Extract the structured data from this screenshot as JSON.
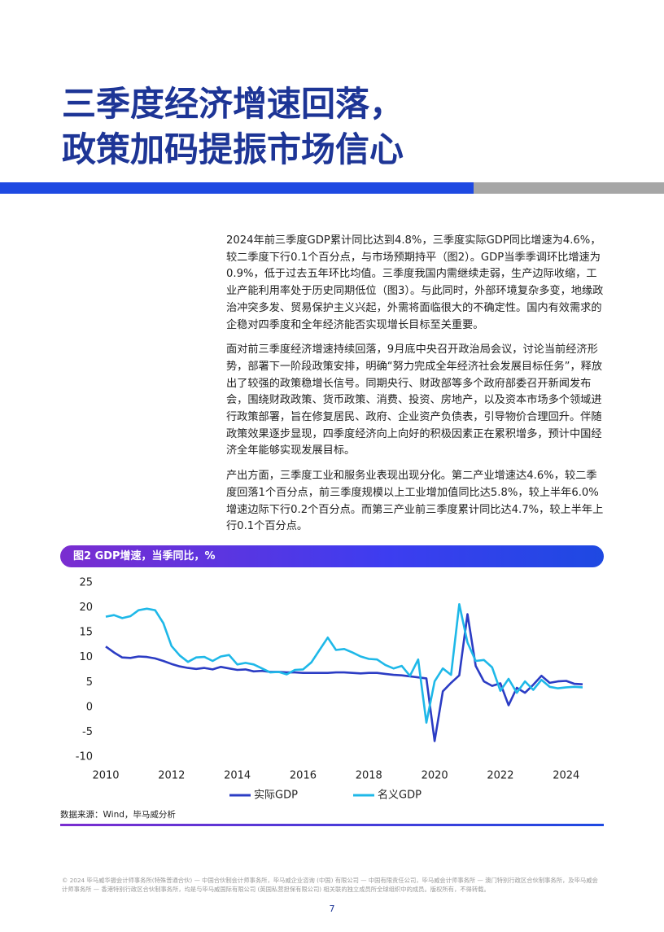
{
  "header": {
    "title_lines": [
      "三季度经济增速回落，",
      "政策加码提振市场信心"
    ]
  },
  "paragraphs": [
    "2024年前三季度GDP累计同比达到4.8%，三季度实际GDP同比增速为4.6%，较二季度下行0.1个百分点，与市场预期持平（图2）。GDP当季季调环比增速为0.9%，低于过去五年环比均值。三季度我国内需继续走弱，生产边际收缩，工业产能利用率处于历史同期低位（图3）。与此同时，外部环境复杂多变，地缘政治冲突多发、贸易保护主义兴起，外需将面临很大的不确定性。国内有效需求的企稳对四季度和全年经济能否实现增长目标至关重要。",
    "面对前三季度经济增速持续回落，9月底中央召开政治局会议，讨论当前经济形势，部署下一阶段政策安排，明确“努力完成全年经济社会发展目标任务”，释放出了较强的政策稳增长信号。同期央行、财政部等多个政府部委召开新闻发布会，围绕财政政策、货币政策、消费、投资、房地产，以及资本市场多个领域进行政策部署，旨在修复居民、政府、企业资产负债表，引导物价合理回升。伴随政策效果逐步显现，四季度经济向上向好的积极因素正在累积增多，预计中国经济全年能够实现发展目标。",
    "产出方面，三季度工业和服务业表现出现分化。第二产业增速达4.6%，较二季度回落1个百分点，前三季度规模以上工业增加值同比达5.8%，较上半年6.0%增速边际下行0.2个百分点。而第三产业前三季度累计同比达4.7%，较上半年上行0.1个百分点。"
  ],
  "chart_data": {
    "type": "line",
    "title": "图2 GDP增速，当季同比，%",
    "x": [
      2010,
      2010.25,
      2010.5,
      2010.75,
      2011,
      2011.25,
      2011.5,
      2011.75,
      2012,
      2012.25,
      2012.5,
      2012.75,
      2013,
      2013.25,
      2013.5,
      2013.75,
      2014,
      2014.25,
      2014.5,
      2014.75,
      2015,
      2015.25,
      2015.5,
      2015.75,
      2016,
      2016.25,
      2016.5,
      2016.75,
      2017,
      2017.25,
      2017.5,
      2017.75,
      2018,
      2018.25,
      2018.5,
      2018.75,
      2019,
      2019.25,
      2019.5,
      2019.75,
      2020,
      2020.25,
      2020.5,
      2020.75,
      2021,
      2021.25,
      2021.5,
      2021.75,
      2022,
      2022.25,
      2022.5,
      2022.75,
      2023,
      2023.25,
      2023.5,
      2023.75,
      2024,
      2024.25,
      2024.5
    ],
    "series": [
      {
        "name": "实际GDP",
        "color": "#2b3cc4",
        "values": [
          12.2,
          11,
          10,
          9.9,
          10.2,
          10.1,
          9.8,
          9.3,
          8.7,
          8.2,
          7.9,
          7.7,
          7.9,
          7.6,
          8.1,
          7.8,
          7.5,
          7.6,
          7.2,
          7.3,
          7.1,
          7.1,
          7,
          7,
          6.9,
          6.9,
          6.9,
          6.9,
          7,
          7,
          6.9,
          6.8,
          6.9,
          6.9,
          6.7,
          6.5,
          6.4,
          6.2,
          6,
          5.8,
          -6.8,
          3.2,
          4.9,
          6.4,
          18.7,
          8.3,
          5.2,
          4.3,
          4.8,
          0.4,
          3.9,
          2.9,
          4.5,
          6.3,
          4.9,
          5.2,
          5.3,
          4.7,
          4.6
        ]
      },
      {
        "name": "名义GDP",
        "color": "#1eb8e8",
        "values": [
          18.2,
          18.5,
          17.9,
          18.3,
          19.5,
          19.8,
          19.5,
          16.9,
          12.3,
          10.4,
          9.1,
          10,
          10.1,
          9.3,
          10.2,
          10.5,
          8.6,
          8.9,
          8.6,
          7.8,
          7,
          7.1,
          6.6,
          7.5,
          7.6,
          9,
          11.5,
          14,
          11.5,
          11.7,
          11,
          10.2,
          9.7,
          9.6,
          8.5,
          7.8,
          8.3,
          6.3,
          9.6,
          -3.1,
          5.2,
          7.8,
          6.5,
          20.7,
          13,
          9.3,
          9.5,
          8,
          3.3,
          5.7,
          2.9,
          5.2,
          3.5,
          5.5,
          4.1,
          3.8,
          4,
          4.1,
          4
        ]
      }
    ],
    "xlim": [
      2010,
      2024.6
    ],
    "xticks": [
      2010,
      2012,
      2014,
      2016,
      2018,
      2020,
      2022,
      2024
    ],
    "ylim": [
      -10,
      25
    ],
    "yticks": [
      -10,
      -5,
      0,
      5,
      10,
      15,
      20,
      25
    ],
    "source": "数据来源：Wind，毕马威分析"
  },
  "footer": "© 2024 毕马威华振会计师事务所(特殊普通合伙) — 中国合伙制会计师事务所，毕马威企业咨询 (中国) 有限公司 — 中国有限责任公司，毕马威会计师事务所 — 澳门特别行政区合伙制事务所，及毕马威会计师事务所 — 香港特别行政区合伙制事务所，均是与毕马威国际有限公司 (英国私营担保有限公司) 相关联的独立成员所全球组织中的成员。版权所有，不得转载。",
  "page_number": "7"
}
